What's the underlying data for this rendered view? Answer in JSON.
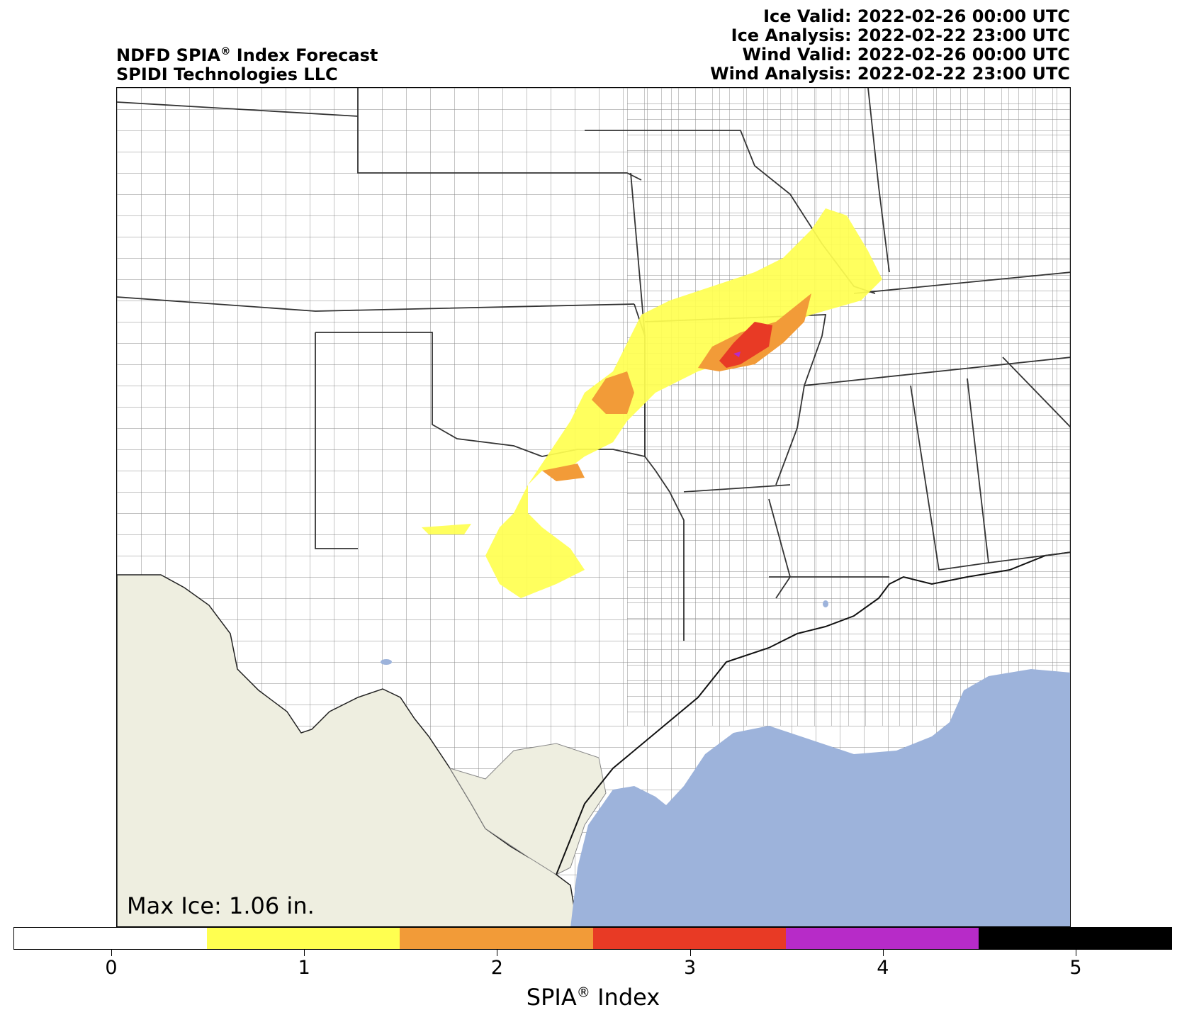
{
  "header": {
    "title_line1_pre": "NDFD SPIA",
    "registered": "®",
    "title_line1_post": " Index Forecast",
    "title_line2": "SPIDI Technologies LLC",
    "ice_valid": "Ice Valid: 2022-02-26 00:00 UTC",
    "ice_analysis": "Ice Analysis: 2022-02-22 23:00 UTC",
    "wind_valid": "Wind Valid: 2022-02-26 00:00 UTC",
    "wind_analysis": "Wind Analysis: 2022-02-22 23:00 UTC"
  },
  "map": {
    "max_ice": "Max Ice: 1.06 in.",
    "colors": {
      "land": "#ffffff",
      "foreign_land": "#eeeee0",
      "water": "#9db3db",
      "county_lines": "#808080",
      "state_lines": "#333333"
    }
  },
  "colorbar": {
    "label_pre": "SPIA",
    "registered": "®",
    "label_post": " Index",
    "ticks": [
      "0",
      "1",
      "2",
      "3",
      "4",
      "5"
    ],
    "colors": [
      "#ffffff",
      "#ffff50",
      "#f29b38",
      "#e83a25",
      "#b72bc8",
      "#000000"
    ]
  }
}
